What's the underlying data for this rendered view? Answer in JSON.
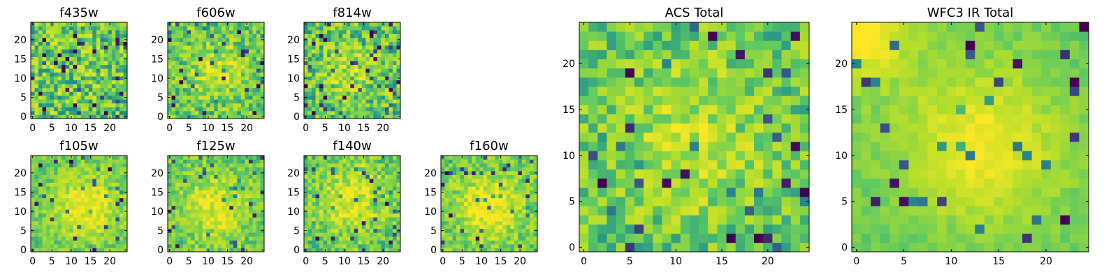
{
  "chart_data": [
    {
      "type": "heatmap",
      "title": "f435w",
      "seed": 435,
      "profile": {
        "center": [
          12,
          12
        ],
        "width": 9,
        "amp": 0.05
      },
      "noise": 0.55,
      "xlim": [
        0,
        24
      ],
      "ylim": [
        0,
        24
      ],
      "x_ticks": [
        0,
        5,
        10,
        15,
        20
      ],
      "y_ticks": [
        0,
        5,
        10,
        15,
        20
      ]
    },
    {
      "type": "heatmap",
      "title": "f606w",
      "seed": 606,
      "profile": {
        "center": [
          12,
          12
        ],
        "width": 5,
        "amp": 0.25
      },
      "noise": 0.45,
      "xlim": [
        0,
        24
      ],
      "ylim": [
        0,
        24
      ],
      "x_ticks": [
        0,
        5,
        10,
        15,
        20
      ],
      "y_ticks": [
        0,
        5,
        10,
        15,
        20
      ]
    },
    {
      "type": "heatmap",
      "title": "f814w",
      "seed": 814,
      "profile": {
        "center": [
          12,
          12
        ],
        "width": 5,
        "amp": 0.18
      },
      "noise": 0.5,
      "xlim": [
        0,
        24
      ],
      "ylim": [
        0,
        24
      ],
      "x_ticks": [
        0,
        5,
        10,
        15,
        20
      ],
      "y_ticks": [
        0,
        5,
        10,
        15,
        20
      ]
    },
    {
      "type": "heatmap",
      "title": "f105w",
      "seed": 105,
      "profile": {
        "center": [
          14,
          11
        ],
        "width": 6,
        "amp": 0.35
      },
      "noise": 0.3,
      "xlim": [
        0,
        24
      ],
      "ylim": [
        0,
        24
      ],
      "x_ticks": [
        0,
        5,
        10,
        15,
        20
      ],
      "y_ticks": [
        0,
        5,
        10,
        15,
        20
      ]
    },
    {
      "type": "heatmap",
      "title": "f125w",
      "seed": 125,
      "profile": {
        "center": [
          12,
          11
        ],
        "width": 6,
        "amp": 0.3
      },
      "noise": 0.35,
      "xlim": [
        0,
        24
      ],
      "ylim": [
        0,
        24
      ],
      "x_ticks": [
        0,
        5,
        10,
        15,
        20
      ],
      "y_ticks": [
        0,
        5,
        10,
        15,
        20
      ]
    },
    {
      "type": "heatmap",
      "title": "f140w",
      "seed": 140,
      "profile": {
        "center": [
          12,
          13
        ],
        "width": 6,
        "amp": 0.3
      },
      "noise": 0.4,
      "xlim": [
        0,
        24
      ],
      "ylim": [
        0,
        24
      ],
      "x_ticks": [
        0,
        5,
        10,
        15,
        20
      ],
      "y_ticks": [
        0,
        5,
        10,
        15,
        20
      ]
    },
    {
      "type": "heatmap",
      "title": "f160w",
      "seed": 160,
      "profile": {
        "center": [
          12,
          11
        ],
        "width": 6,
        "amp": 0.35
      },
      "noise": 0.35,
      "xlim": [
        0,
        24
      ],
      "ylim": [
        0,
        24
      ],
      "x_ticks": [
        0,
        5,
        10,
        15,
        20
      ],
      "y_ticks": [
        0,
        5,
        10,
        15,
        20
      ]
    },
    {
      "type": "heatmap",
      "title": "ACS Total",
      "seed": 999,
      "profile": {
        "center": [
          12,
          12
        ],
        "width": 6,
        "amp": 0.2
      },
      "noise": 0.4,
      "xlim": [
        0,
        24
      ],
      "ylim": [
        0,
        24
      ],
      "x_ticks": [
        0,
        5,
        10,
        15,
        20
      ],
      "y_ticks": [
        0,
        5,
        10,
        15,
        20
      ]
    },
    {
      "type": "heatmap",
      "title": "WFC3 IR Total",
      "seed": 321,
      "profile": {
        "center": [
          13,
          11
        ],
        "width": 6,
        "amp": 0.35
      },
      "noise": 0.15,
      "corner_boost": {
        "corner": [
          0,
          24
        ],
        "amp": 0.45,
        "width": 4
      },
      "xlim": [
        0,
        24
      ],
      "ylim": [
        0,
        24
      ],
      "x_ticks": [
        0,
        5,
        10,
        15,
        20
      ],
      "y_ticks": [
        0,
        5,
        10,
        15,
        20
      ]
    }
  ],
  "colormap": [
    "#440154",
    "#3b528b",
    "#21918c",
    "#5ec962",
    "#b5de2b",
    "#fde725"
  ]
}
